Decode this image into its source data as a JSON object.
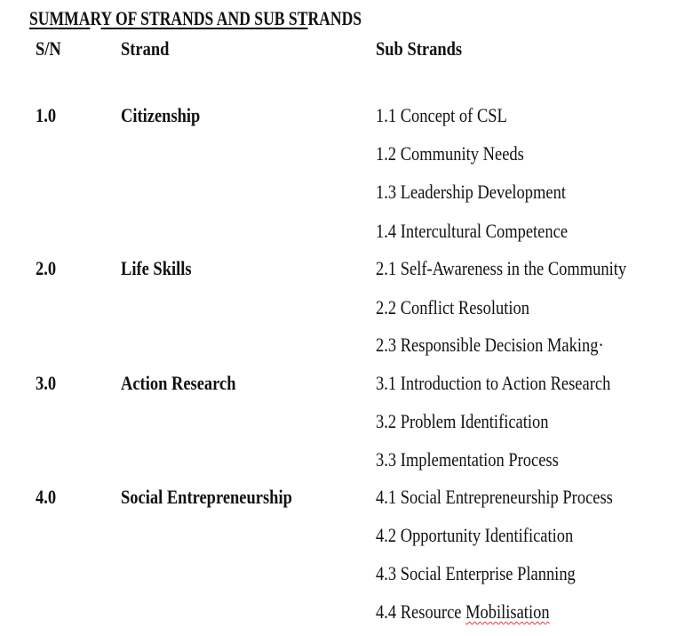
{
  "title": {
    "part1": "SUMMA",
    "part2": "R",
    "part3": "Y OF STRANDS AND SUB ST",
    "part4": "RANDS"
  },
  "headers": {
    "sn": "S/N",
    "strand": "Strand",
    "sub_strands": "Sub Strands"
  },
  "strands": [
    {
      "sn": "1.0",
      "name": "Citizenship",
      "sub_strands": [
        "1.1 Concept of CSL",
        "1.2 Community Needs",
        "1.3 Leadership Development",
        "1.4 Intercultural  Competence"
      ]
    },
    {
      "sn": "2.0",
      "name": "Life Skills",
      "sub_strands": [
        "2.1 Self-Awareness in the Community",
        "2.2 Conflict Resolution",
        "2.3 Responsible Decision Making·"
      ]
    },
    {
      "sn": "3.0",
      "name": "Action Research",
      "sub_strands": [
        "3.1 Introduction to Action Research",
        "3.2 Problem Identification",
        "3.3 Implementation  Process"
      ]
    },
    {
      "sn": "4.0",
      "name": "Social Entrepreneurship",
      "sub_strands": [
        "4.1 Social Entrepreneurship Process",
        "4.2 Opportunity Identification",
        "4.3 Social Enterprise Planning"
      ]
    }
  ],
  "last_sub_strand": {
    "prefix": "4.4 Resource ",
    "word": "Mobilisation"
  }
}
